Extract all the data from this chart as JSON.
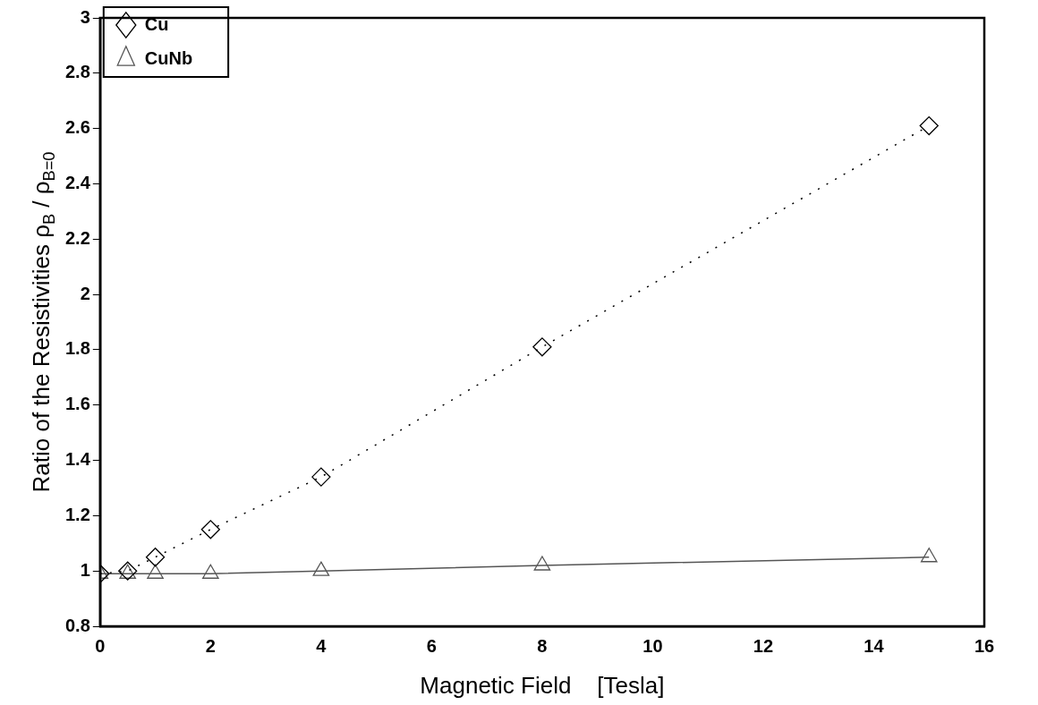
{
  "chart_data": {
    "type": "line",
    "xlabel": "Magnetic Field    [Tesla]",
    "ylabel": "Ratio of the Resistivities ρ$_{B}$ / ρ$_{B=0}$",
    "x": [
      0,
      0.5,
      1,
      2,
      4,
      8,
      15
    ],
    "series": [
      {
        "name": "Cu",
        "color": "#000000",
        "values": [
          0.99,
          1.0,
          1.05,
          1.15,
          1.34,
          1.81,
          2.61
        ],
        "marker": "diamond",
        "line_style": "dotted"
      },
      {
        "name": "CuNb",
        "color": "#555555",
        "values": [
          0.99,
          0.99,
          0.99,
          0.99,
          1.0,
          1.02,
          1.05
        ],
        "marker": "triangle",
        "line_style": "solid"
      }
    ],
    "xlim": [
      0,
      16
    ],
    "xticks": [
      0,
      2,
      4,
      6,
      8,
      10,
      12,
      14,
      16
    ],
    "ylim": [
      0.8,
      3
    ],
    "yticks": [
      0.8,
      1,
      1.2,
      1.4,
      1.6,
      1.8,
      2,
      2.2,
      2.4,
      2.6,
      2.8,
      3
    ],
    "grid": false,
    "legend": "top left"
  }
}
